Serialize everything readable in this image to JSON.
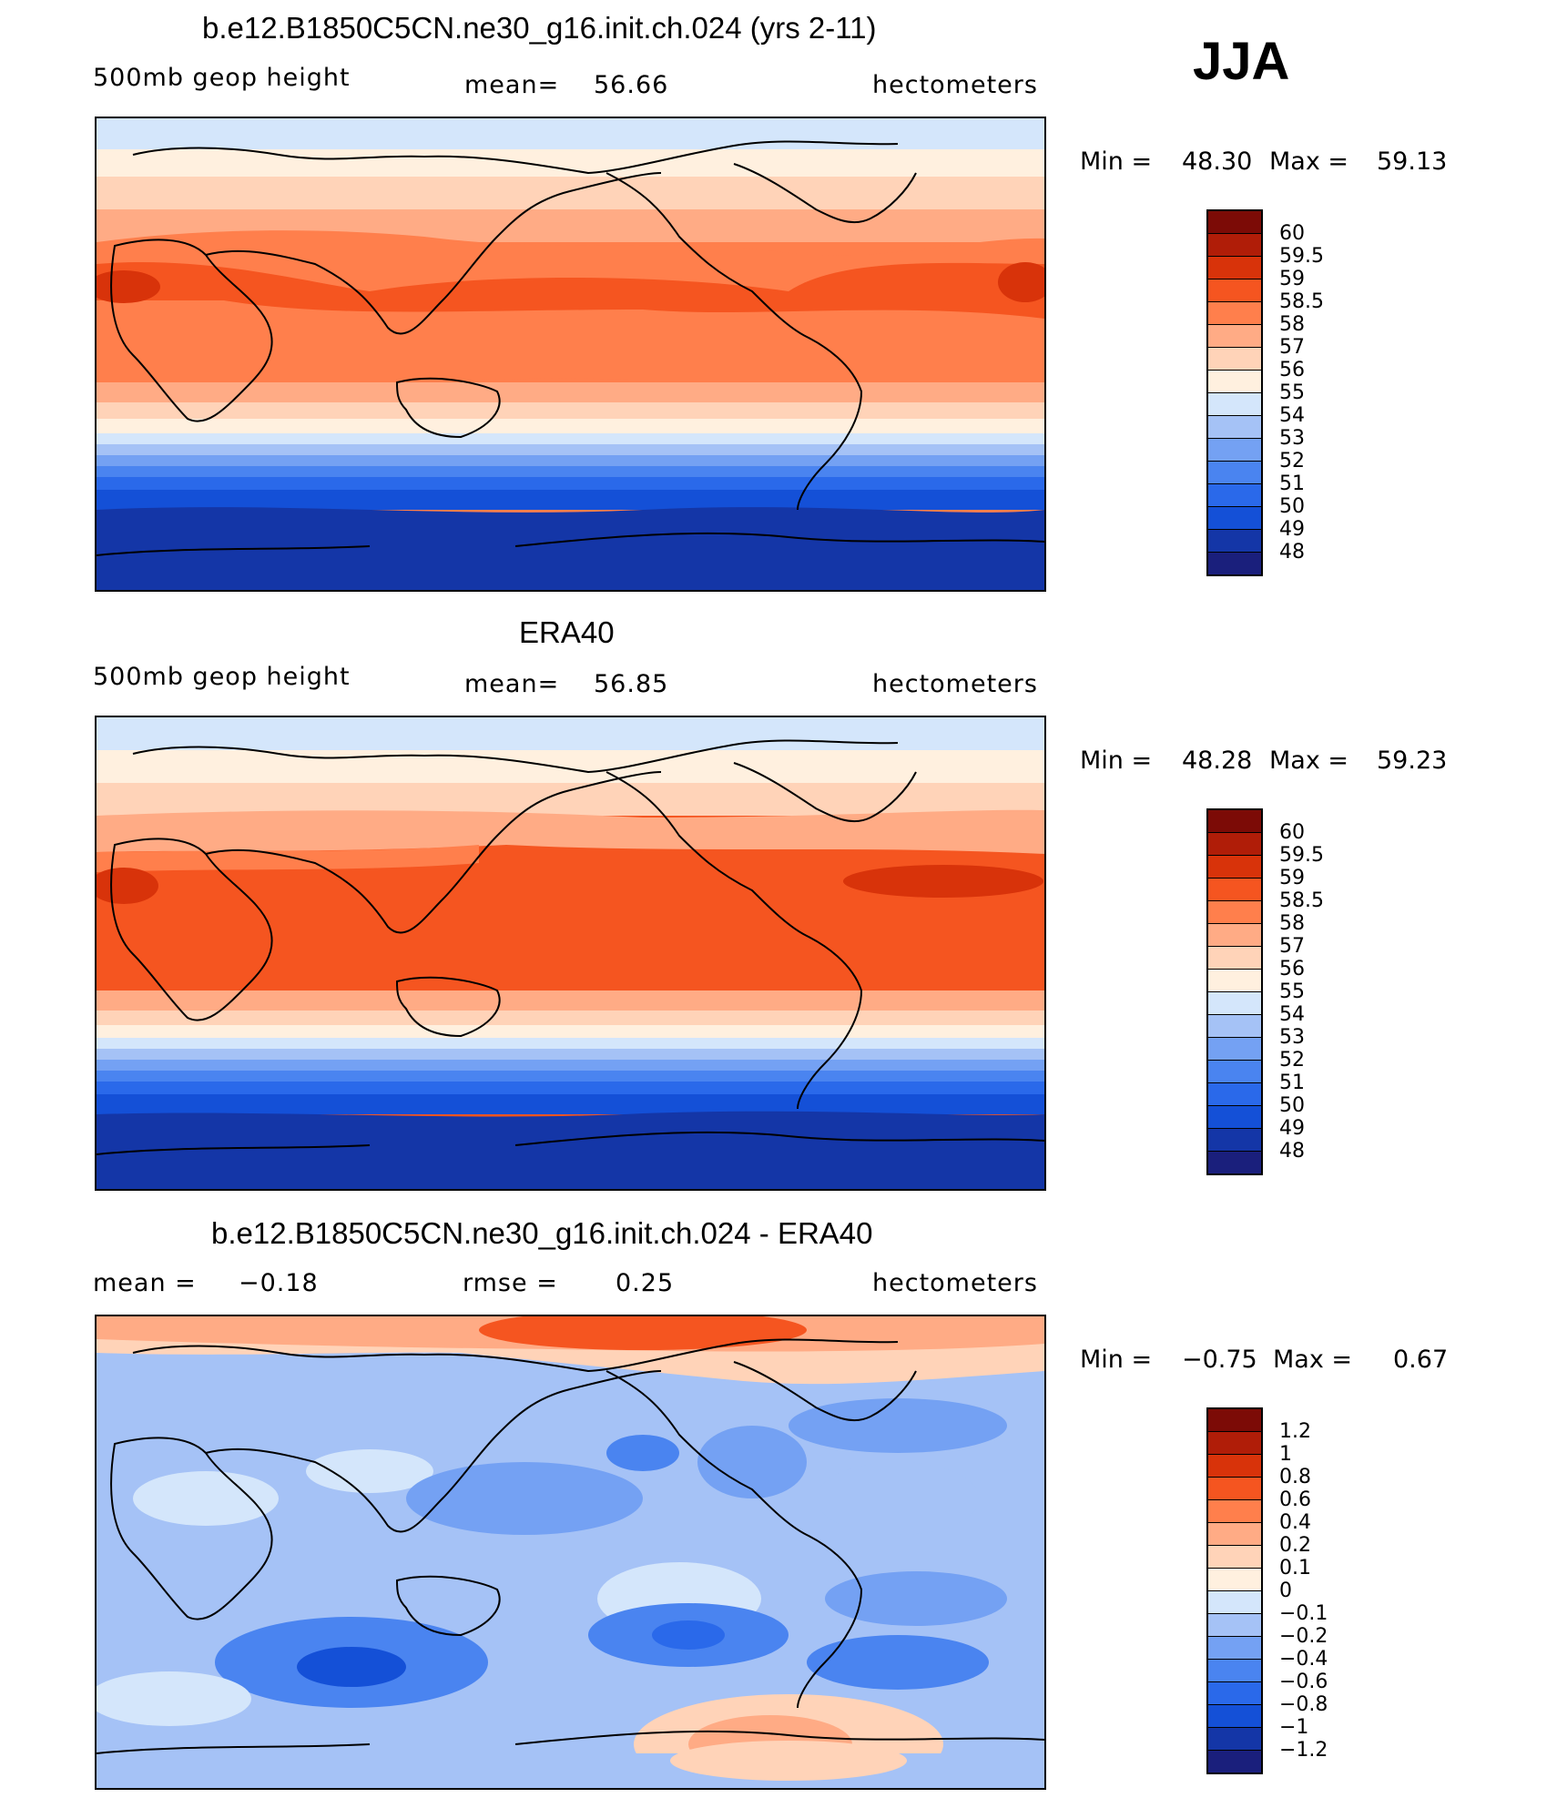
{
  "season": "JJA",
  "colors": {
    "panel_1_scale": [
      "#1a1f7c",
      "#1436a7",
      "#1450d7",
      "#2a69ea",
      "#4a84f0",
      "#74a1f3",
      "#a5c2f6",
      "#d4e6fb",
      "#fff0df",
      "#ffd3b8",
      "#ffab85",
      "#ff7f4c",
      "#f55520",
      "#d8330a",
      "#b01d08",
      "#7c0b06"
    ],
    "panel_2_scale": [
      "#1a1f7c",
      "#1436a7",
      "#1450d7",
      "#2a69ea",
      "#4a84f0",
      "#74a1f3",
      "#a5c2f6",
      "#d4e6fb",
      "#fff0df",
      "#ffd3b8",
      "#ffab85",
      "#ff7f4c",
      "#f55520",
      "#d8330a",
      "#b01d08",
      "#7c0b06"
    ],
    "panel_3_scale": [
      "#1a1f7c",
      "#1436a7",
      "#1450d7",
      "#2a69ea",
      "#4a84f0",
      "#74a1f3",
      "#a5c2f6",
      "#d4e6fb",
      "#fff0df",
      "#ffd3b8",
      "#ffab85",
      "#ff7f4c",
      "#f55520",
      "#d8330a",
      "#b01d08",
      "#7c0b06"
    ],
    "land_outline": "#000000"
  },
  "panels": [
    {
      "title": "b.e12.B1850C5CN.ne30_g16.init.ch.024 (yrs 2-11)",
      "left_label": "500mb  geop  height",
      "stat_label": "mean=",
      "stat_value": "56.66",
      "second_label": "",
      "second_value": "",
      "units": "hectometers",
      "min_label": "Min  =",
      "min_value": "48.30",
      "max_label": "Max  =",
      "max_value": "59.13",
      "colorbar_labels": [
        "60",
        "59.5",
        "59",
        "58.5",
        "58",
        "57",
        "56",
        "55",
        "54",
        "53",
        "52",
        "51",
        "50",
        "49",
        "48"
      ]
    },
    {
      "title": "ERA40",
      "left_label": "500mb  geop  height",
      "stat_label": "mean=",
      "stat_value": "56.85",
      "second_label": "",
      "second_value": "",
      "units": "hectometers",
      "min_label": "Min  =",
      "min_value": "48.28",
      "max_label": "Max  =",
      "max_value": "59.23",
      "colorbar_labels": [
        "60",
        "59.5",
        "59",
        "58.5",
        "58",
        "57",
        "56",
        "55",
        "54",
        "53",
        "52",
        "51",
        "50",
        "49",
        "48"
      ]
    },
    {
      "title": "b.e12.B1850C5CN.ne30_g16.init.ch.024 - ERA40",
      "left_label": "mean  =",
      "stat_label": "",
      "stat_value": "",
      "left_value": "−0.18",
      "second_label": "rmse  =",
      "second_value": "0.25",
      "units": "hectometers",
      "min_label": "Min  =",
      "min_value": "−0.75",
      "max_label": "Max  =",
      "max_value": "0.67",
      "colorbar_labels": [
        "1.2",
        "1",
        "0.8",
        "0.6",
        "0.4",
        "0.2",
        "0.1",
        "0",
        "−0.1",
        "−0.2",
        "−0.4",
        "−0.6",
        "−0.8",
        "−1",
        "−1.2"
      ]
    }
  ]
}
